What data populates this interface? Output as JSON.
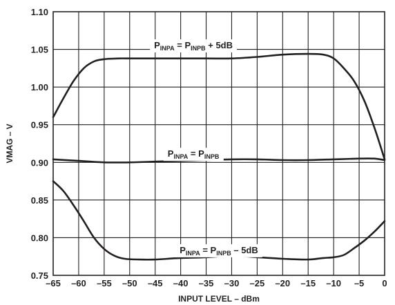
{
  "chart_data": {
    "type": "line",
    "xlabel": "INPUT LEVEL – dBm",
    "ylabel": "VMAG – V",
    "xlim": [
      -65,
      0
    ],
    "ylim": [
      0.75,
      1.1
    ],
    "grid": true,
    "x_ticks": [
      "–65",
      "–60",
      "–55",
      "–50",
      "–45",
      "–40",
      "–35",
      "–30",
      "–25",
      "–20",
      "–15",
      "–10",
      "–5",
      "0"
    ],
    "y_ticks": [
      "1.10",
      "1.05",
      "1.00",
      "0.95",
      "0.90",
      "0.85",
      "0.80",
      "0.75"
    ],
    "series": [
      {
        "x": [
          -65,
          -63,
          -61,
          -59,
          -57,
          -55,
          -52,
          -50,
          -45,
          -40,
          -35,
          -30,
          -25,
          -20,
          -15,
          -12,
          -10,
          -8,
          -6,
          -4,
          -2,
          0
        ],
        "y": [
          0.96,
          0.985,
          1.008,
          1.025,
          1.034,
          1.037,
          1.038,
          1.038,
          1.038,
          1.038,
          1.038,
          1.038,
          1.04,
          1.043,
          1.044,
          1.043,
          1.038,
          1.025,
          1.008,
          0.982,
          0.946,
          0.904
        ]
      },
      {
        "x": [
          -65,
          -60,
          -55,
          -50,
          -45,
          -40,
          -35,
          -30,
          -25,
          -20,
          -15,
          -10,
          -5,
          -2,
          0
        ],
        "y": [
          0.904,
          0.902,
          0.9,
          0.9,
          0.901,
          0.902,
          0.903,
          0.904,
          0.904,
          0.903,
          0.903,
          0.904,
          0.905,
          0.905,
          0.903
        ]
      },
      {
        "x": [
          -65,
          -63,
          -61,
          -59,
          -57,
          -55,
          -53,
          -51,
          -48,
          -45,
          -40,
          -35,
          -30,
          -25,
          -20,
          -15,
          -12,
          -10,
          -8,
          -6,
          -4,
          -2,
          0
        ],
        "y": [
          0.875,
          0.862,
          0.843,
          0.822,
          0.8,
          0.785,
          0.776,
          0.772,
          0.771,
          0.771,
          0.773,
          0.774,
          0.776,
          0.774,
          0.772,
          0.771,
          0.773,
          0.774,
          0.777,
          0.786,
          0.796,
          0.808,
          0.822
        ]
      }
    ],
    "annotations": [
      {
        "x": -37.5,
        "y": 1.056,
        "parts": [
          {
            "t": "P",
            "sub": false
          },
          {
            "t": "INPA",
            "sub": true
          },
          {
            "t": " = P",
            "sub": false
          },
          {
            "t": "INPB",
            "sub": true
          },
          {
            "t": " + 5dB",
            "sub": false
          }
        ]
      },
      {
        "x": -37.5,
        "y": 0.912,
        "parts": [
          {
            "t": "P",
            "sub": false
          },
          {
            "t": "INPA",
            "sub": true
          },
          {
            "t": " = P",
            "sub": false
          },
          {
            "t": "INPB",
            "sub": true
          }
        ]
      },
      {
        "x": -32.5,
        "y": 0.784,
        "parts": [
          {
            "t": "P",
            "sub": false
          },
          {
            "t": "INPA",
            "sub": true
          },
          {
            "t": " = P",
            "sub": false
          },
          {
            "t": "INPB",
            "sub": true
          },
          {
            "t": " – 5dB",
            "sub": false
          }
        ]
      }
    ],
    "colors": {
      "line": "#231f20",
      "grid": "#231f20",
      "background": "#ffffff"
    }
  }
}
